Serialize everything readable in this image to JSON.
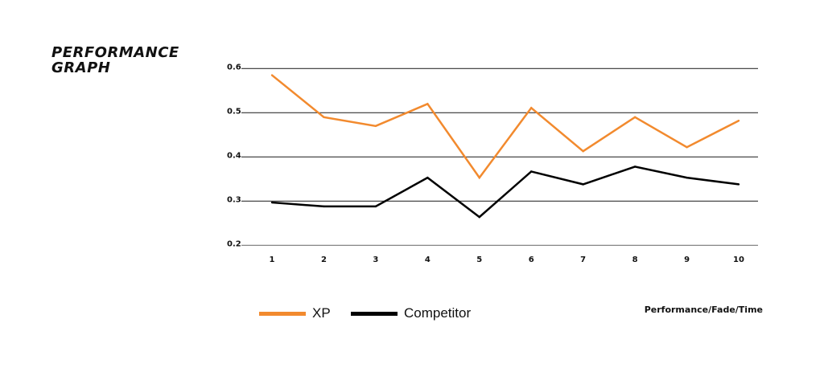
{
  "chart_data": {
    "type": "line",
    "title": "PERFORMANCE GRAPH",
    "xlabel": "Performance/Fade/Time",
    "ylabel": "",
    "x": [
      1,
      2,
      3,
      4,
      5,
      6,
      7,
      8,
      9,
      10
    ],
    "yticks": [
      "0.6",
      "0.5",
      "0.4",
      "0.3",
      "0.2"
    ],
    "ylim": [
      0.2,
      0.6
    ],
    "grid": "horizontal",
    "legend_placement": "bottom-left",
    "series": [
      {
        "name": "XP",
        "color": "#f28a2e",
        "values": [
          0.585,
          0.49,
          0.47,
          0.52,
          0.353,
          0.511,
          0.413,
          0.49,
          0.422,
          0.482
        ]
      },
      {
        "name": "Competitor",
        "color": "#000000",
        "values": [
          0.297,
          0.288,
          0.288,
          0.353,
          0.264,
          0.367,
          0.338,
          0.378,
          0.353,
          0.338
        ]
      }
    ]
  }
}
